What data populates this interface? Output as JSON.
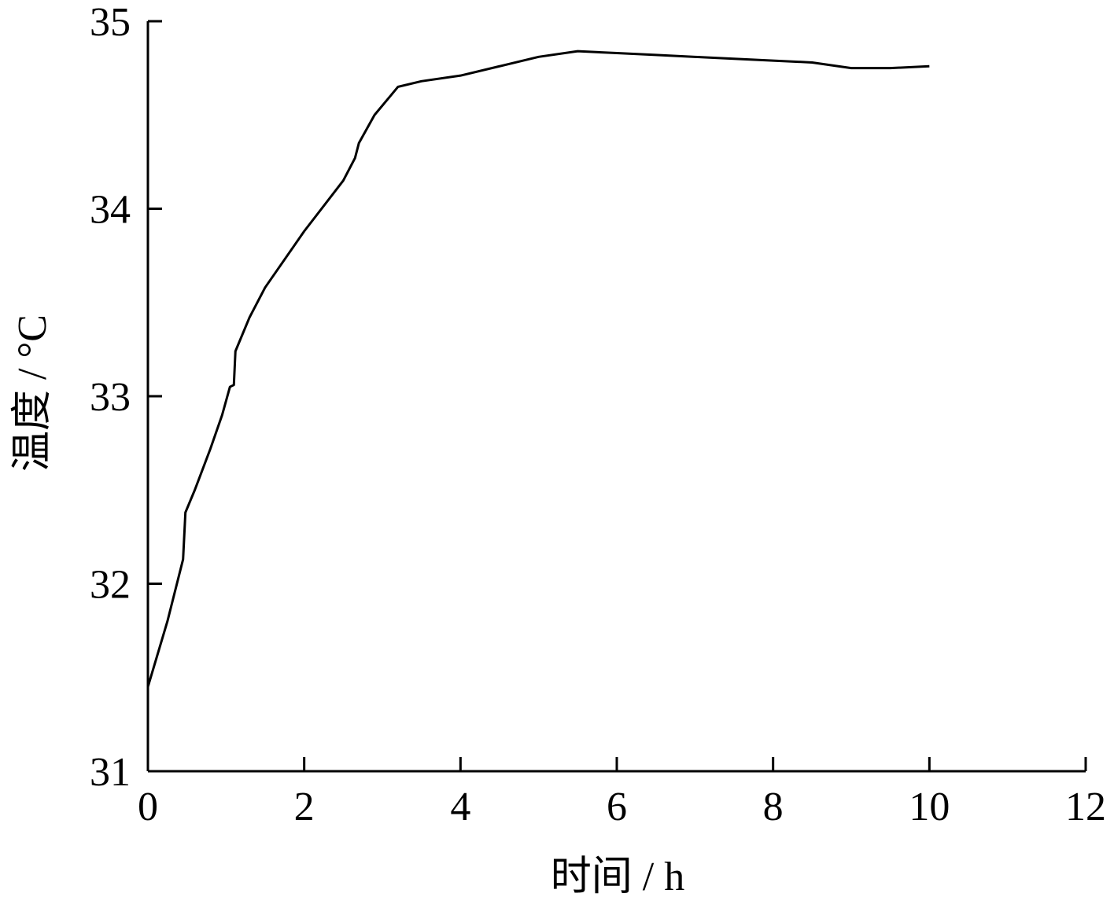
{
  "chart_data": {
    "type": "line",
    "x_label": "时间 / h",
    "y_label": "温度 / °C",
    "xlim": [
      0,
      12
    ],
    "xticks": [
      0,
      2,
      4,
      6,
      8,
      10,
      12
    ],
    "ylim": [
      31,
      35
    ],
    "yticks": [
      31,
      32,
      33,
      34,
      35
    ],
    "x": [
      0,
      0.25,
      0.45,
      0.48,
      0.6,
      0.8,
      0.95,
      1.05,
      1.1,
      1.12,
      1.3,
      1.5,
      2.0,
      2.5,
      2.65,
      2.7,
      2.9,
      3.1,
      3.2,
      3.5,
      4.0,
      4.5,
      5.0,
      5.5,
      6.0,
      6.5,
      7.0,
      7.5,
      8.0,
      8.5,
      9.0,
      9.5,
      10.0
    ],
    "series": [
      {
        "color": "#000000",
        "values": [
          31.45,
          31.8,
          32.13,
          32.38,
          32.5,
          32.72,
          32.9,
          33.05,
          33.06,
          33.24,
          33.42,
          33.58,
          33.88,
          34.15,
          34.27,
          34.35,
          34.5,
          34.6,
          34.65,
          34.68,
          34.71,
          34.76,
          34.81,
          34.84,
          34.83,
          34.82,
          34.81,
          34.8,
          34.79,
          34.78,
          34.75,
          34.75,
          34.76
        ]
      }
    ]
  }
}
